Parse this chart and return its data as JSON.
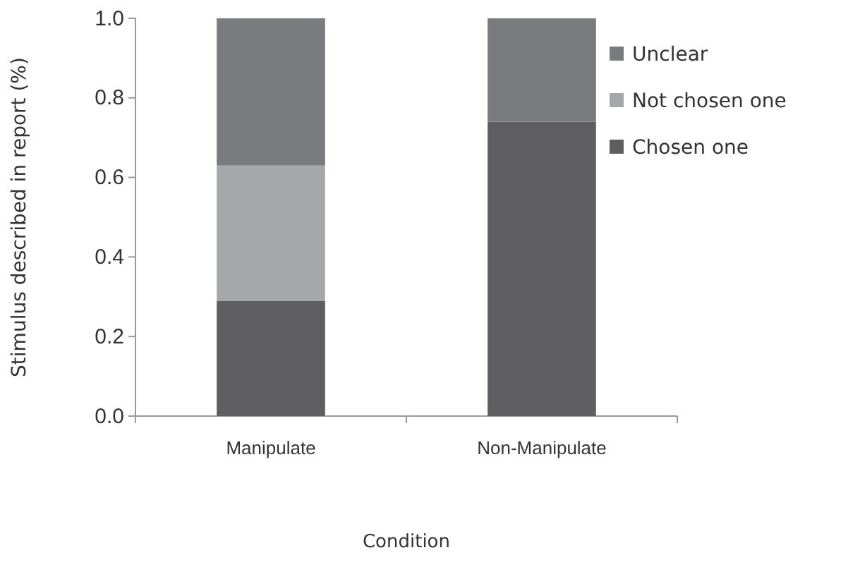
{
  "chart_data": {
    "type": "bar",
    "stacked": true,
    "xlabel": "Condition",
    "ylabel": "Stimulus described in report  (%)",
    "categories": [
      "Manipulate",
      "Non-Manipulate"
    ],
    "series": [
      {
        "name": "Chosen one",
        "color": "#5f5f61",
        "values": [
          0.29,
          0.74
        ]
      },
      {
        "name": "Not chosen one",
        "color": "#a6a7a9",
        "values": [
          0.34,
          0
        ]
      },
      {
        "name": "Unclear",
        "color": "#7a7b7e",
        "values": [
          0.37,
          0.26
        ]
      }
    ],
    "ylim": [
      0,
      1
    ],
    "yticks": [
      {
        "value": 0,
        "label": "0.0"
      },
      {
        "value": 0.2,
        "label": "0.2"
      },
      {
        "value": 0.4,
        "label": "0.4"
      },
      {
        "value": 0.6,
        "label": "0.6"
      },
      {
        "value": 0.8,
        "label": "0.8"
      },
      {
        "value": 1,
        "label": "1.0"
      }
    ],
    "legend": "right"
  }
}
